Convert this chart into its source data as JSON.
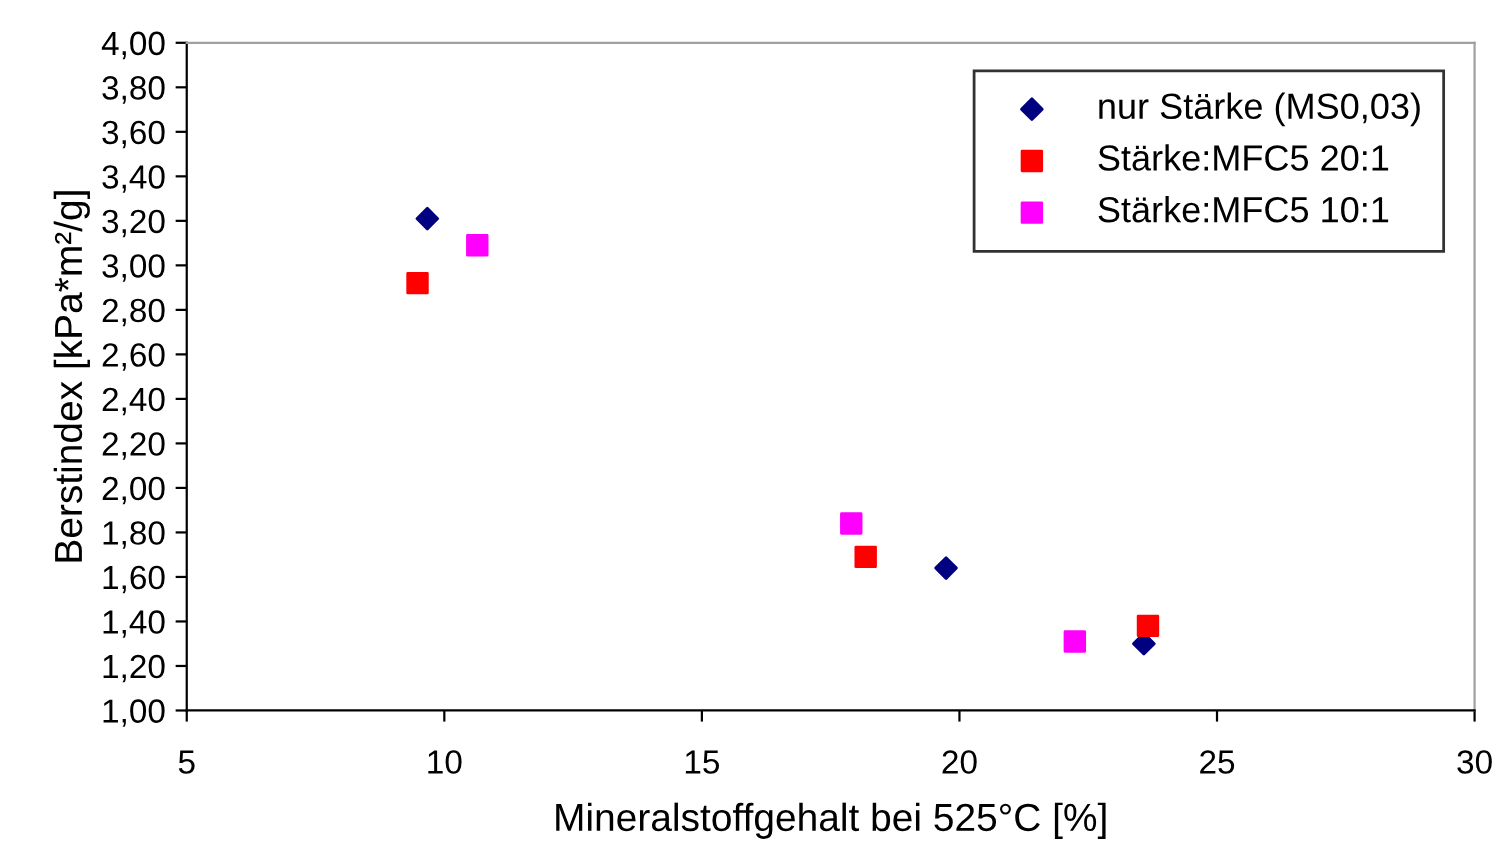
{
  "chart_data": {
    "type": "scatter",
    "xlabel": "Mineralstoffgehalt bei 525°C [%]",
    "ylabel": "Berstindex [kPa*m²/g]",
    "xlim": [
      5,
      30
    ],
    "xticks": [
      5,
      10,
      15,
      20,
      25,
      30
    ],
    "ylim": [
      1,
      4
    ],
    "yticks": [
      {
        "value": 1,
        "label": "1,00"
      },
      {
        "value": 1.2,
        "label": "1,20"
      },
      {
        "value": 1.4,
        "label": "1,40"
      },
      {
        "value": 1.6,
        "label": "1,60"
      },
      {
        "value": 1.8,
        "label": "1,80"
      },
      {
        "value": 2,
        "label": "2,00"
      },
      {
        "value": 2.2,
        "label": "2,20"
      },
      {
        "value": 2.4,
        "label": "2,40"
      },
      {
        "value": 2.6,
        "label": "2,60"
      },
      {
        "value": 2.8,
        "label": "2,80"
      },
      {
        "value": 3,
        "label": "3,00"
      },
      {
        "value": 3.2,
        "label": "3,20"
      },
      {
        "value": 3.4,
        "label": "3,40"
      },
      {
        "value": 3.6,
        "label": "3,60"
      },
      {
        "value": 3.8,
        "label": "3,80"
      },
      {
        "value": 4,
        "label": "4,00"
      }
    ],
    "grid": false,
    "legend": "top right",
    "series": [
      {
        "name": "nur Stärke (MS0,03)",
        "color": "#000080",
        "marker": "diamond",
        "x": [
          9.67,
          19.74,
          23.58
        ],
        "values": [
          3.21,
          1.64,
          1.3
        ]
      },
      {
        "name": "Stärke:MFC5 20:1",
        "color": "#ff0000",
        "marker": "square",
        "x": [
          9.48,
          18.18,
          23.66
        ],
        "values": [
          2.92,
          1.69,
          1.38
        ]
      },
      {
        "name": "Stärke:MFC5 10:1",
        "color": "#ff00ff",
        "marker": "square",
        "x": [
          10.64,
          17.9,
          22.24
        ],
        "values": [
          3.09,
          1.84,
          1.31
        ]
      }
    ]
  }
}
